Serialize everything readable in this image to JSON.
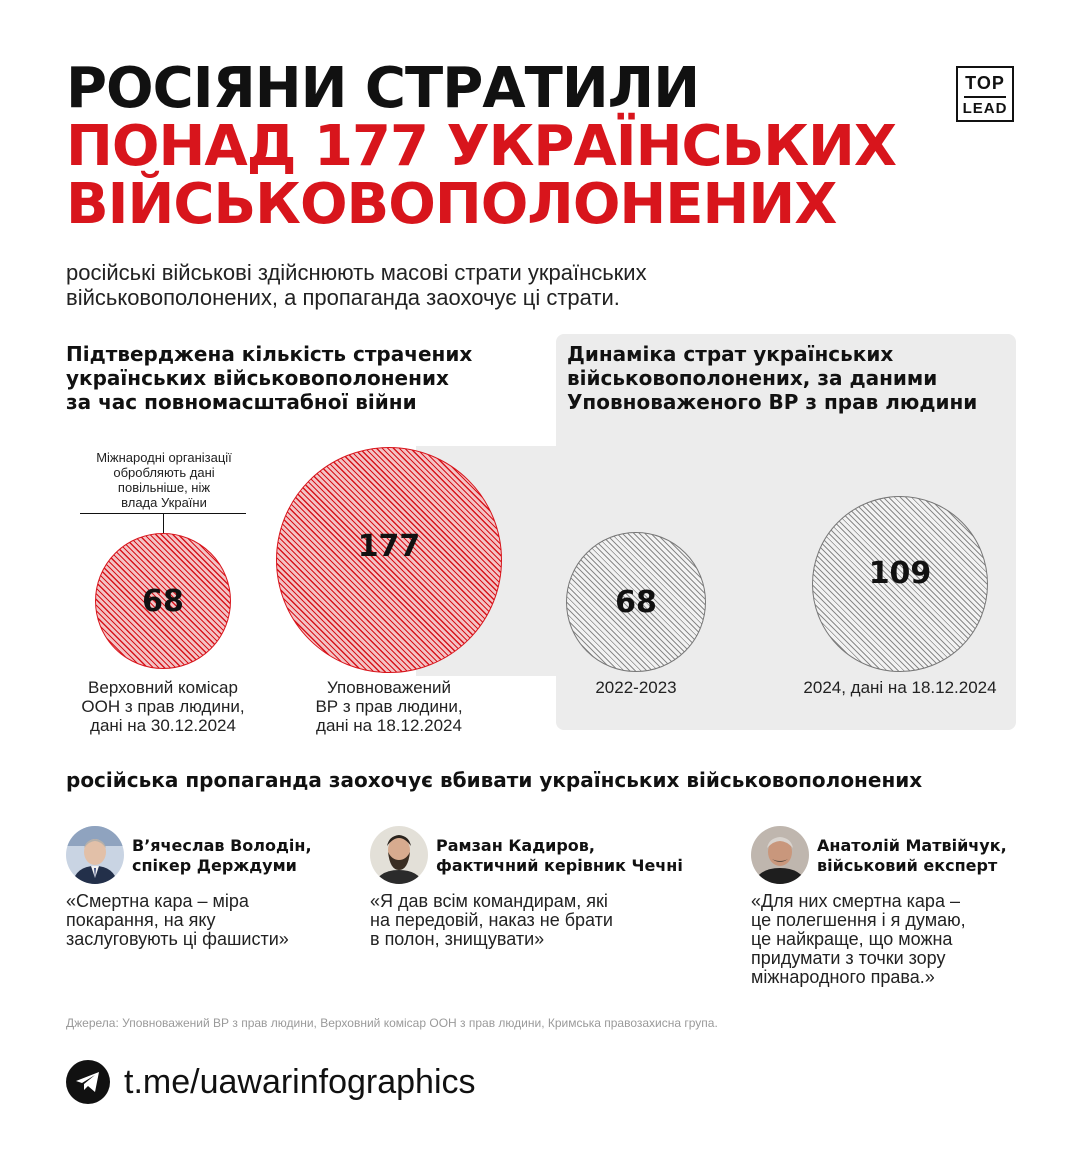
{
  "title": {
    "line1": "РОСІЯНИ СТРАТИЛИ",
    "line2": "ПОНАД 177 УКРАЇНСЬКИХ",
    "line3": "ВІЙСЬКОВОПОЛОНЕНИХ"
  },
  "logo": {
    "top": "TOP",
    "bottom": "LEAD"
  },
  "subtitle": {
    "line1": "російські військові здійснюють масові страти українських",
    "line2": "військовополонених, а пропаганда заохочує ці страти."
  },
  "left_section": {
    "heading": [
      "Підтверджена кількість страчених",
      "українських військовополонених",
      "за час повномасштабної війни"
    ],
    "note": [
      "Міжнародні організації",
      "обробляють дані",
      "повільніше, ніж",
      "влада України"
    ],
    "items": [
      {
        "value": "68",
        "label": [
          "Верховний комісар",
          "ООН з прав людини,",
          "дані на 30.12.2024"
        ]
      },
      {
        "value": "177",
        "label": [
          "Уповноважений",
          "ВР з прав людини,",
          "дані на 18.12.2024"
        ]
      }
    ]
  },
  "right_section": {
    "heading": [
      "Динаміка страт українських",
      "військовополонених, за даними",
      "Уповноваженого ВР з прав людини"
    ],
    "items": [
      {
        "value": "68",
        "label": "2022-2023"
      },
      {
        "value": "109",
        "label": "2024, дані на 18.12.2024"
      }
    ]
  },
  "propaganda": {
    "heading": "російська пропаганда заохочує вбивати українських військовополонених",
    "people": [
      {
        "name": [
          "В’ячеслав Володін,",
          "спікер Держдуми"
        ],
        "quote": [
          "«Смертна кара – міра",
          "покарання, на яку",
          "заслуговують ці фашисти»"
        ]
      },
      {
        "name": [
          "Рамзан Кадиров,",
          "фактичний керівник Чечні"
        ],
        "quote": [
          "«Я дав всім командирам, які",
          "на передовій, наказ не брати",
          "в полон, знищувати»"
        ]
      },
      {
        "name": [
          "Анатолій Матвійчук,",
          "військовий експерт"
        ],
        "quote": [
          "«Для них смертна кара –",
          "це полегшення і я думаю,",
          "це найкраще, що можна",
          "придумати з точки зору",
          "міжнародного права.»"
        ]
      }
    ]
  },
  "sources": "Джерела: Уповноважений ВР з прав людини, Верховний комісар ООН з прав людини, Кримська правозахисна група.",
  "footer": {
    "link": "t.me/uawarinfographics",
    "icon": "telegram-icon"
  },
  "colors": {
    "accent": "#d8151c",
    "panel": "#ececec"
  }
}
